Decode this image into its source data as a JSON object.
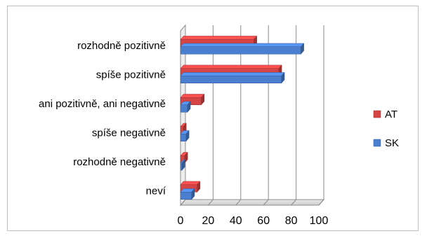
{
  "chart_data": {
    "type": "bar",
    "orientation": "horizontal",
    "style": "3d-clustered",
    "categories": [
      "rozhodně pozitivně",
      "spíše pozitivně",
      "ani pozitivně, ani negativně",
      "spíše negativně",
      "rozhodně negativně",
      "neví"
    ],
    "series": [
      {
        "name": "AT",
        "color": "#d64545",
        "values": [
          53,
          71,
          15,
          2,
          3,
          12
        ]
      },
      {
        "name": "SK",
        "color": "#4a7fcf",
        "values": [
          87,
          73,
          5,
          4,
          1,
          8
        ]
      }
    ],
    "xlim": [
      0,
      100
    ],
    "xticks": [
      0,
      20,
      40,
      60,
      80,
      100
    ],
    "grid": true,
    "legend_position": "right"
  }
}
